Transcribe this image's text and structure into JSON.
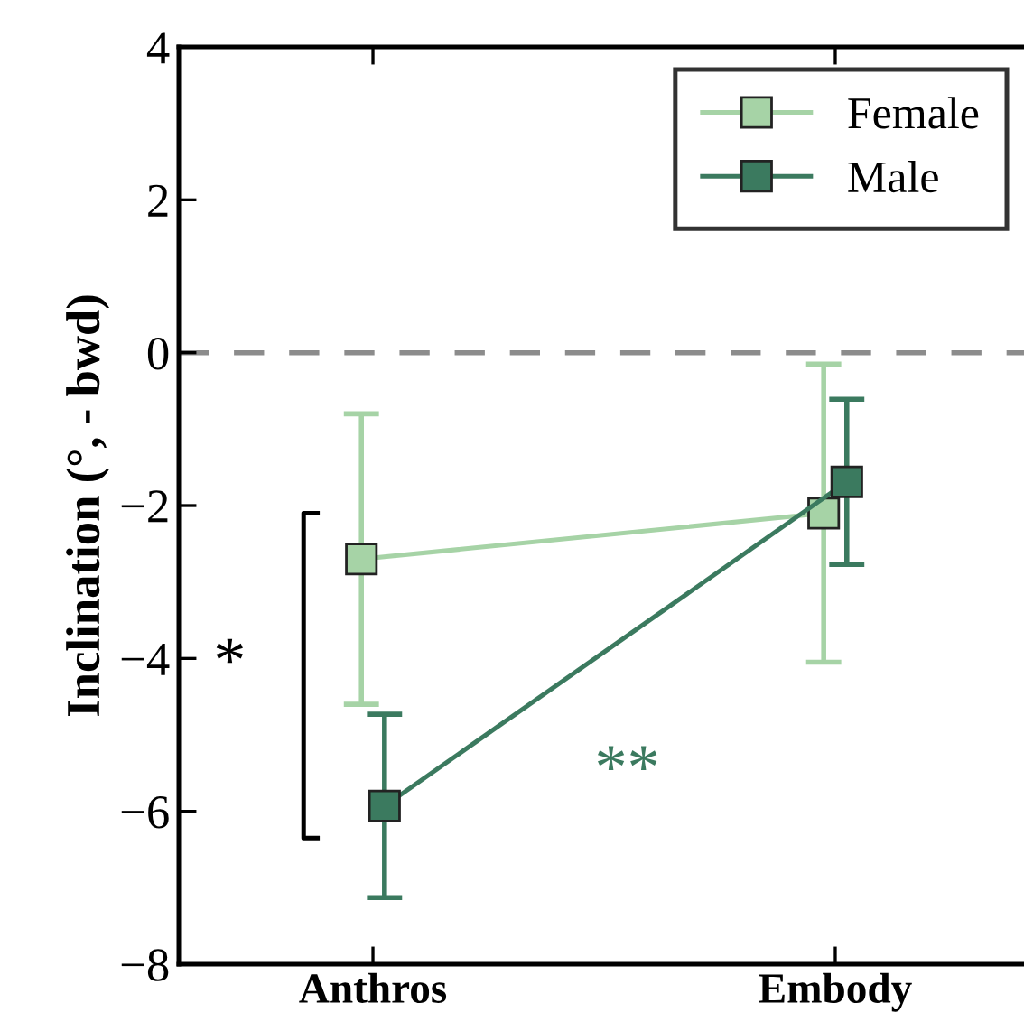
{
  "chart_data": {
    "type": "line",
    "ylabel": "Inclination (°, - bwd)",
    "categories": [
      "Anthros",
      "Embody"
    ],
    "series": [
      {
        "name": "Female",
        "color": "#a6d3a6",
        "values": [
          -2.7,
          -2.1
        ],
        "errors": [
          1.9,
          1.95
        ]
      },
      {
        "name": "Male",
        "color": "#3b7a5f",
        "values": [
          -5.93,
          -1.69
        ],
        "errors": [
          1.2,
          1.08
        ]
      }
    ],
    "ylim": [
      -8,
      4
    ],
    "yticks": [
      -8,
      -6,
      -4,
      -2,
      0,
      2,
      4
    ],
    "ref_lines": [
      {
        "axis": "y",
        "value": 0,
        "color": "#8c8c8c",
        "line_style": "dashed"
      }
    ],
    "annotations": [
      "*",
      "**"
    ],
    "marker": "square",
    "line_style": "solid",
    "legend": "top right",
    "grid": false
  }
}
